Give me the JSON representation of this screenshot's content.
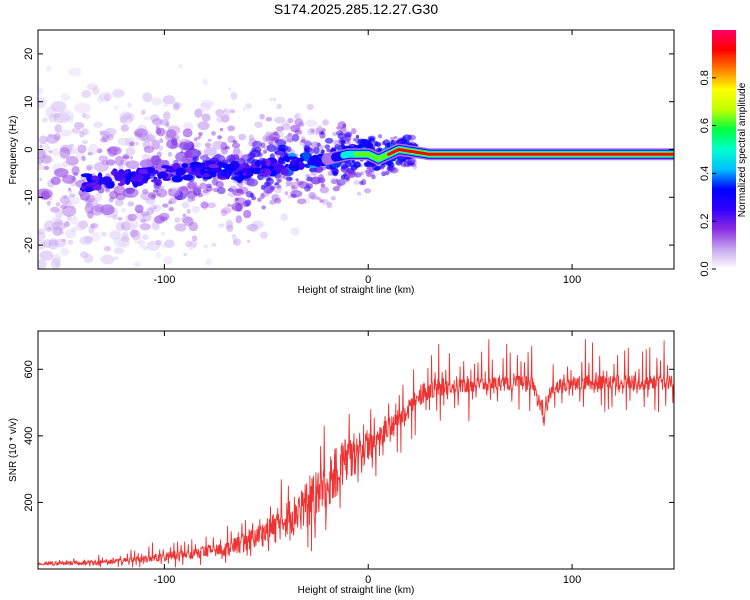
{
  "title": "S174.2025.285.12.27.G30",
  "chart_data": [
    {
      "type": "heatmap",
      "xlabel": "Height of straight line (km)",
      "ylabel": "Frequency (Hz)",
      "xlim": [
        -162,
        150
      ],
      "ylim": [
        -25,
        25
      ],
      "x_ticks": [
        -100,
        0,
        100
      ],
      "y_ticks": [
        -20,
        -10,
        0,
        10,
        20
      ],
      "x_tick_labels": [
        "-100",
        "0",
        "100"
      ],
      "y_tick_labels": [
        "-20",
        "-10",
        "0",
        "10",
        "20"
      ],
      "ridge": {
        "description_axis_values": "frequency trace of main spectral line",
        "x": [
          -162,
          -120,
          -80,
          -60,
          -40,
          -20,
          -10,
          0,
          5,
          15,
          30,
          60,
          84,
          90,
          120,
          150
        ],
        "y": [
          -8,
          -6,
          -4,
          -5,
          -3,
          -2,
          -1,
          -1,
          -2,
          0,
          -1,
          -1,
          -1,
          -1,
          -1,
          -1
        ],
        "amplitude": [
          0.15,
          0.2,
          0.3,
          0.35,
          0.4,
          0.5,
          0.6,
          0.7,
          0.75,
          0.8,
          0.85,
          0.9,
          0.9,
          0.9,
          0.9,
          0.9
        ]
      },
      "colorbar": {
        "label": "Normalized spectral amplitude",
        "ticks": [
          0.0,
          0.2,
          0.4,
          0.6,
          0.8
        ],
        "tick_labels": [
          "0.0",
          "0.2",
          "0.4",
          "0.6",
          "0.8"
        ],
        "range": [
          0,
          1
        ],
        "colors": [
          "#ffffff",
          "#c7a8f0",
          "#8a2be2",
          "#2f00ff",
          "#0000ff",
          "#00c0ff",
          "#00ffd0",
          "#00ff40",
          "#c0ff00",
          "#ffff00",
          "#ff8000",
          "#ff0000",
          "#ff0066"
        ]
      }
    },
    {
      "type": "line",
      "xlabel": "Height of straight line (km)",
      "ylabel": "SNR (10 * v/v)",
      "xlim": [
        -162,
        150
      ],
      "ylim": [
        0,
        715
      ],
      "x_ticks": [
        -100,
        0,
        100
      ],
      "y_ticks": [
        200,
        400,
        600
      ],
      "x_tick_labels": [
        "-100",
        "0",
        "100"
      ],
      "y_tick_labels": [
        "200",
        "400",
        "600"
      ],
      "color": "#ee3333",
      "series": [
        {
          "name": "SNR",
          "envelope": {
            "x": [
              -162,
              -130,
              -110,
              -90,
              -70,
              -60,
              -50,
              -40,
              -30,
              -20,
              -15,
              -10,
              -5,
              0,
              5,
              10,
              15,
              20,
              25,
              30,
              40,
              60,
              80,
              84,
              86,
              90,
              100,
              120,
              150
            ],
            "base": [
              15,
              20,
              30,
              45,
              60,
              80,
              110,
              150,
              190,
              250,
              300,
              330,
              350,
              370,
              390,
              420,
              450,
              480,
              520,
              540,
              550,
              555,
              560,
              500,
              460,
              540,
              560,
              560,
              560
            ],
            "spread": [
              10,
              15,
              20,
              30,
              40,
              60,
              80,
              110,
              140,
              170,
              160,
              150,
              120,
              90,
              80,
              70,
              60,
              60,
              60,
              60,
              50,
              45,
              45,
              60,
              60,
              45,
              45,
              45,
              45
            ],
            "spike": [
              0,
              20,
              40,
              40,
              60,
              80,
              100,
              120,
              140,
              160,
              150,
              140,
              130,
              110,
              110,
              120,
              140,
              150,
              140,
              130,
              130,
              120,
              110,
              60,
              40,
              100,
              120,
              130,
              120
            ]
          }
        }
      ]
    }
  ]
}
